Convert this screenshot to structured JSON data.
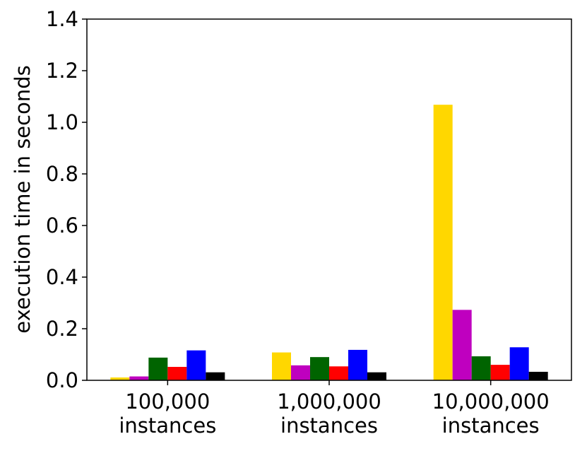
{
  "chart_data": {
    "type": "bar",
    "title": "",
    "xlabel": "",
    "ylabel": "execution time in seconds",
    "ylim": [
      0,
      1.4
    ],
    "yticks": [
      "0.0",
      "0.2",
      "0.4",
      "0.6",
      "0.8",
      "1.0",
      "1.2",
      "1.4"
    ],
    "categories": [
      [
        "100,000",
        "instances"
      ],
      [
        "1,000,000",
        "instances"
      ],
      [
        "10,000,000",
        "instances"
      ]
    ],
    "grid": false,
    "legend": "none",
    "series": [
      {
        "color": "#FFD700",
        "values": [
          0.011,
          0.108,
          1.068
        ]
      },
      {
        "color": "#BF00BF",
        "values": [
          0.015,
          0.058,
          0.273
        ]
      },
      {
        "color": "#006400",
        "values": [
          0.088,
          0.09,
          0.093
        ]
      },
      {
        "color": "#FF0000",
        "values": [
          0.052,
          0.054,
          0.06
        ]
      },
      {
        "color": "#0000FF",
        "values": [
          0.116,
          0.118,
          0.128
        ]
      },
      {
        "color": "#000000",
        "values": [
          0.031,
          0.031,
          0.033
        ]
      }
    ]
  }
}
